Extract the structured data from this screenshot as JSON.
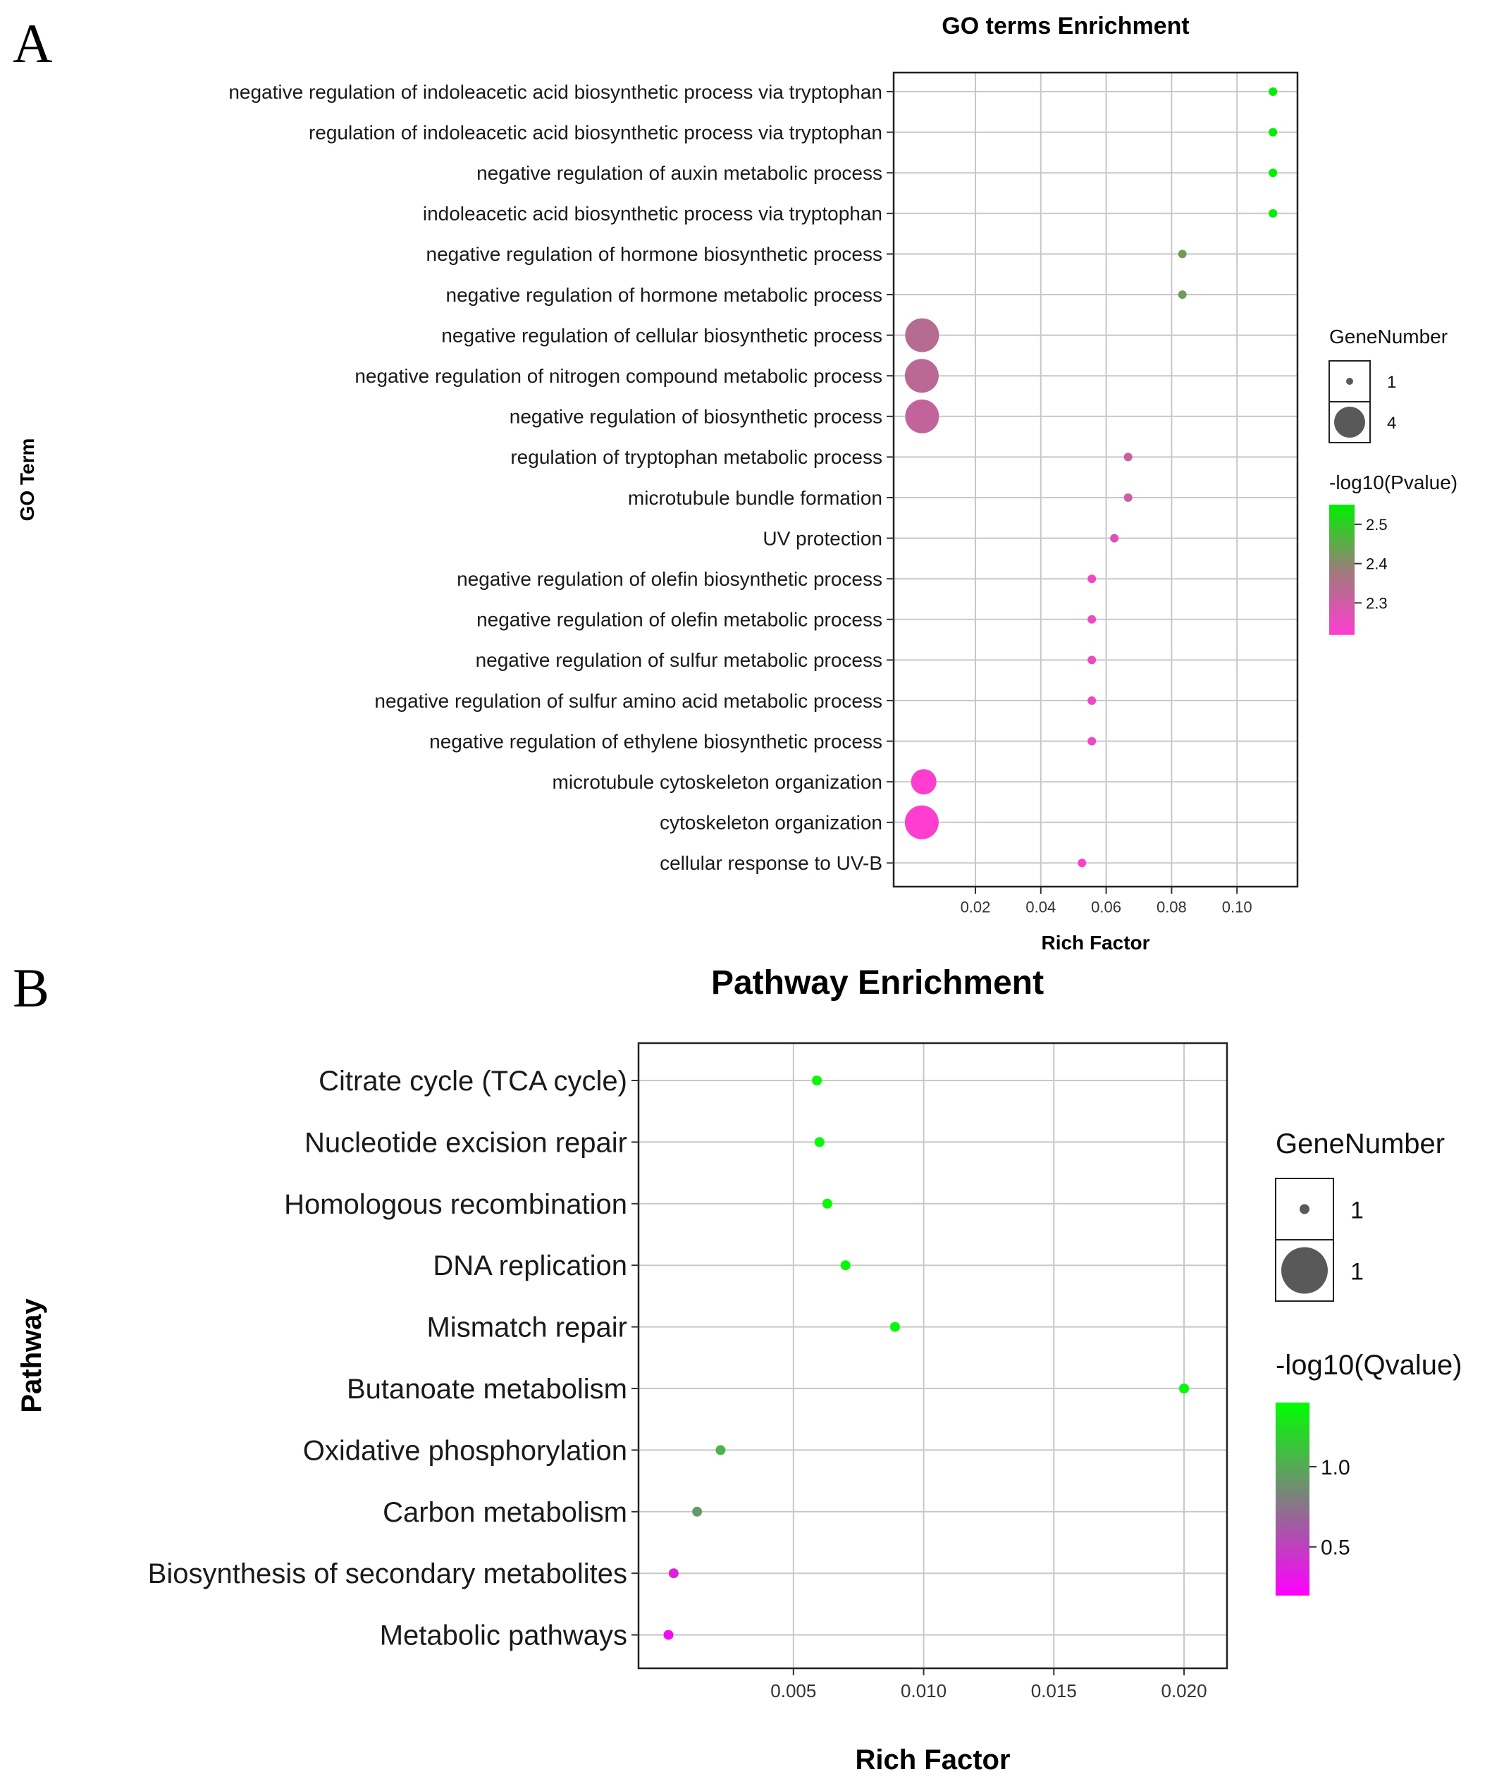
{
  "chart_data": [
    {
      "panel": "A",
      "type": "scatter",
      "title": "GO terms Enrichment",
      "xlabel": "Rich Factor",
      "ylabel": "GO Term",
      "xlim": [
        -0.005,
        0.1185
      ],
      "xticks": [
        0.02,
        0.04,
        0.06,
        0.08,
        0.1
      ],
      "xtick_labels": [
        "0.02",
        "0.04",
        "0.06",
        "0.08",
        "0.10"
      ],
      "grid": true,
      "categories": [
        "negative regulation of indoleacetic acid biosynthetic process via tryptophan",
        "regulation of indoleacetic acid biosynthetic process via tryptophan",
        "negative regulation of auxin metabolic process",
        "indoleacetic acid biosynthetic process via tryptophan",
        "negative regulation of hormone biosynthetic process",
        "negative regulation of hormone metabolic process",
        "negative regulation of cellular biosynthetic process",
        "negative regulation of nitrogen compound metabolic process",
        "negative regulation of biosynthetic process",
        "regulation of tryptophan metabolic process",
        "microtubule bundle formation",
        "UV protection",
        "negative regulation of olefin biosynthetic process",
        "negative regulation of olefin metabolic process",
        "negative regulation of sulfur metabolic process",
        "negative regulation of sulfur amino acid metabolic process",
        "negative regulation of ethylene biosynthetic process",
        "microtubule cytoskeleton organization",
        "cytoskeleton organization",
        "cellular response to UV-B"
      ],
      "rich_factor": [
        0.111,
        0.111,
        0.111,
        0.111,
        0.0833,
        0.0833,
        0.0037,
        0.0036,
        0.0037,
        0.0667,
        0.0667,
        0.0625,
        0.0556,
        0.0556,
        0.0556,
        0.0556,
        0.0556,
        0.0042,
        0.0036,
        0.0526
      ],
      "gene_number": [
        1,
        1,
        1,
        1,
        1,
        1,
        4,
        4,
        4,
        1,
        1,
        1,
        1,
        1,
        1,
        1,
        1,
        3,
        4,
        1
      ],
      "neg_log10_pvalue": [
        2.55,
        2.55,
        2.55,
        2.55,
        2.43,
        2.43,
        2.34,
        2.33,
        2.32,
        2.3,
        2.3,
        2.27,
        2.24,
        2.24,
        2.24,
        2.24,
        2.24,
        2.22,
        2.22,
        2.22
      ],
      "color_scale": {
        "min": 2.22,
        "max": 2.55,
        "low_color": "#ff3ed0",
        "mid_color": "#9b7d78",
        "high_color": "#00f000"
      },
      "size_legend": {
        "title": "GeneNumber",
        "labels": [
          "1",
          "4"
        ],
        "values": [
          1,
          4
        ]
      },
      "color_legend": {
        "title": "-log10(Pvalue)",
        "labels": [
          "2.5",
          "2.4",
          "2.3"
        ],
        "values": [
          2.5,
          2.4,
          2.3
        ]
      }
    },
    {
      "panel": "B",
      "type": "scatter",
      "title": "Pathway Enrichment",
      "xlabel": "Rich Factor",
      "ylabel": "Pathway",
      "xlim": [
        -0.00095,
        0.02165
      ],
      "xticks": [
        0.005,
        0.01,
        0.015,
        0.02
      ],
      "xtick_labels": [
        "0.005",
        "0.010",
        "0.015",
        "0.020"
      ],
      "grid": true,
      "categories": [
        "Citrate cycle (TCA cycle)",
        "Nucleotide excision repair",
        "Homologous recombination",
        "DNA replication",
        "Mismatch repair",
        "Butanoate metabolism",
        "Oxidative phosphorylation",
        "Carbon metabolism",
        "Biosynthesis of secondary metabolites",
        "Metabolic pathways"
      ],
      "rich_factor": [
        0.0059,
        0.006,
        0.0063,
        0.007,
        0.0089,
        0.02,
        0.0022,
        0.0013,
        0.0004,
        0.0002
      ],
      "gene_number": [
        1,
        1,
        1,
        1,
        1,
        1,
        1,
        1,
        1,
        1
      ],
      "neg_log10_qvalue": [
        1.38,
        1.38,
        1.38,
        1.38,
        1.38,
        1.38,
        1.05,
        0.92,
        0.35,
        0.25
      ],
      "color_scale": {
        "min": 0.2,
        "max": 1.4,
        "low_color": "#ff00ff",
        "mid_color": "#7f7f7f",
        "high_color": "#00ff00"
      },
      "size_legend": {
        "title": "GeneNumber",
        "labels": [
          "1",
          "1"
        ],
        "values": [
          1,
          1
        ]
      },
      "color_legend": {
        "title": "-log10(Qvalue)",
        "labels": [
          "1.0",
          "0.5"
        ],
        "values": [
          1.0,
          0.5
        ]
      }
    }
  ]
}
